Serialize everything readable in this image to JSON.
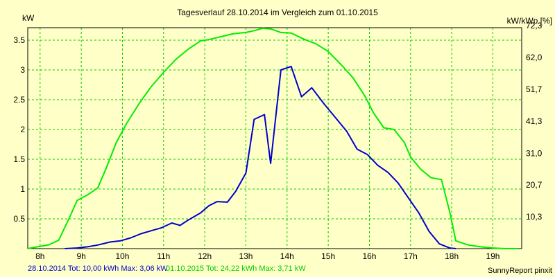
{
  "chart_data": {
    "type": "line",
    "title": "Tagesverlauf 28.10.2014 im Vergleich zum 01.10.2015",
    "ylabel_left": "kW",
    "ylabel_right": "kW/kWp [%]",
    "xlim": [
      7.7,
      19.7
    ],
    "ylim": [
      0,
      3.71
    ],
    "x_ticks": [
      8,
      9,
      10,
      11,
      12,
      13,
      14,
      15,
      16,
      17,
      18,
      19
    ],
    "x_tick_labels": [
      "8h",
      "9h",
      "10h",
      "11h",
      "12h",
      "13h",
      "14h",
      "15h",
      "16h",
      "17h",
      "18h",
      "19h"
    ],
    "y_ticks_left": [
      0.5,
      1,
      1.5,
      2,
      2.5,
      3,
      3.5
    ],
    "y_tick_labels_left": [
      "0.5",
      "1",
      "1.5",
      "2",
      "2.5",
      "3",
      "3.5"
    ],
    "y_ticks_right": [
      0.535,
      1.07,
      1.6,
      2.14,
      2.675,
      3.21,
      3.745
    ],
    "y_tick_labels_right": [
      "10,3",
      "20,7",
      "31,0",
      "41,3",
      "51,7",
      "62,0",
      "72,3"
    ],
    "grid": true,
    "series": [
      {
        "name": "01.10.2015",
        "color": "#00ee00",
        "x": [
          7.7,
          8.0,
          8.2,
          8.45,
          8.7,
          8.9,
          9.15,
          9.4,
          9.6,
          9.85,
          10.1,
          10.4,
          10.7,
          11.0,
          11.3,
          11.6,
          11.9,
          12.1,
          12.4,
          12.7,
          13.0,
          13.2,
          13.4,
          13.6,
          13.85,
          14.1,
          14.4,
          14.7,
          15.0,
          15.3,
          15.6,
          15.9,
          16.1,
          16.35,
          16.6,
          16.85,
          17.0,
          17.25,
          17.5,
          17.75,
          17.95,
          18.1,
          18.4,
          18.7,
          19.0,
          19.3,
          19.6
        ],
        "y": [
          0.0,
          0.04,
          0.06,
          0.14,
          0.5,
          0.81,
          0.9,
          1.02,
          1.34,
          1.78,
          2.1,
          2.43,
          2.72,
          2.96,
          3.18,
          3.35,
          3.49,
          3.51,
          3.56,
          3.61,
          3.63,
          3.66,
          3.7,
          3.69,
          3.63,
          3.62,
          3.52,
          3.44,
          3.31,
          3.1,
          2.87,
          2.55,
          2.28,
          2.03,
          2.0,
          1.78,
          1.54,
          1.33,
          1.19,
          1.16,
          0.62,
          0.13,
          0.06,
          0.03,
          0.01,
          0.0,
          0.0
        ]
      },
      {
        "name": "28.10.2014",
        "color": "#0000cc",
        "x": [
          8.6,
          8.9,
          9.15,
          9.4,
          9.7,
          9.95,
          10.2,
          10.45,
          10.7,
          10.95,
          11.2,
          11.4,
          11.6,
          11.9,
          12.1,
          12.3,
          12.55,
          12.75,
          13.0,
          13.2,
          13.45,
          13.6,
          13.85,
          14.1,
          14.35,
          14.6,
          14.9,
          15.2,
          15.45,
          15.7,
          15.95,
          16.2,
          16.45,
          16.7,
          16.95,
          17.2,
          17.45,
          17.7,
          17.95,
          18.1
        ],
        "y": [
          0.0,
          0.01,
          0.03,
          0.06,
          0.11,
          0.13,
          0.18,
          0.25,
          0.3,
          0.35,
          0.43,
          0.39,
          0.48,
          0.6,
          0.72,
          0.79,
          0.78,
          0.96,
          1.27,
          2.17,
          2.25,
          1.43,
          3.0,
          3.06,
          2.55,
          2.7,
          2.43,
          2.18,
          1.97,
          1.67,
          1.58,
          1.4,
          1.28,
          1.1,
          0.85,
          0.6,
          0.29,
          0.08,
          0.01,
          0.0
        ]
      }
    ],
    "footer": {
      "series1_text": "28.10.2014 Tot: 10,00 kWh Max: 3,06 kW",
      "series2_text": "01.10.2015 Tot: 24,22 kWh Max: 3,71 kW",
      "credit": "SunnyReport pinxit"
    },
    "colors": {
      "background": "#ffffc8",
      "grid": "#00cc00",
      "series1_text": "#0000cc",
      "series2_text": "#00cc00"
    }
  }
}
